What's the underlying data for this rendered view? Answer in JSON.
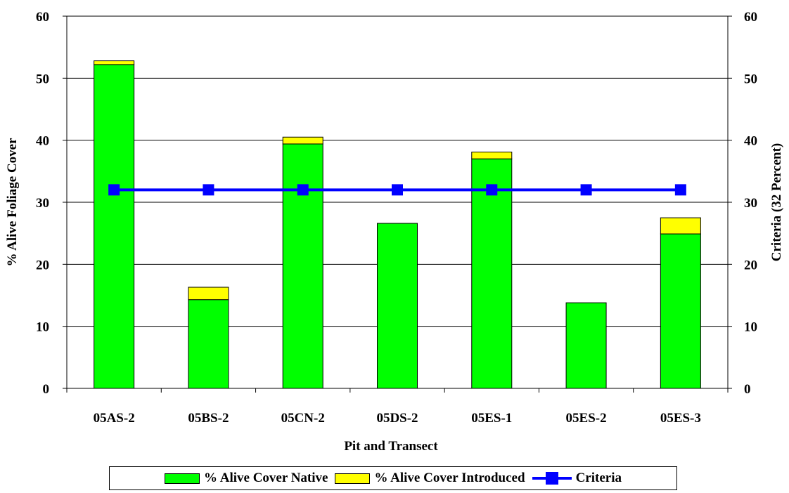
{
  "chart_data": {
    "type": "bar",
    "stacked": true,
    "categories": [
      "05AS-2",
      "05BS-2",
      "05CN-2",
      "05DS-2",
      "05ES-1",
      "05ES-2",
      "05ES-3"
    ],
    "series": [
      {
        "name": "% Alive Cover Native",
        "type": "bar",
        "color": "#00ff00",
        "values": [
          52.2,
          14.3,
          39.4,
          26.6,
          37.0,
          13.8,
          24.9
        ]
      },
      {
        "name": "% Alive Cover Introduced",
        "type": "bar",
        "color": "#ffff00",
        "values": [
          0.6,
          2.0,
          1.1,
          0.0,
          1.1,
          0.0,
          2.6
        ]
      },
      {
        "name": "Criteria",
        "type": "line",
        "color": "#0000ff",
        "marker": "square",
        "axis": "right",
        "values": [
          32,
          32,
          32,
          32,
          32,
          32,
          32
        ]
      }
    ],
    "title": "",
    "xlabel": "Pit and Transect",
    "ylabel": "% Alive Foliage Cover",
    "y2label": "Criteria (32 Percent)",
    "ylim": [
      0,
      60
    ],
    "y2lim": [
      0,
      60
    ],
    "yticks": [
      "0",
      "10",
      "20",
      "30",
      "40",
      "50",
      "60"
    ],
    "y2ticks": [
      "0",
      "10",
      "20",
      "30",
      "40",
      "50",
      "60"
    ],
    "grid": true,
    "legend_position": "bottom"
  }
}
